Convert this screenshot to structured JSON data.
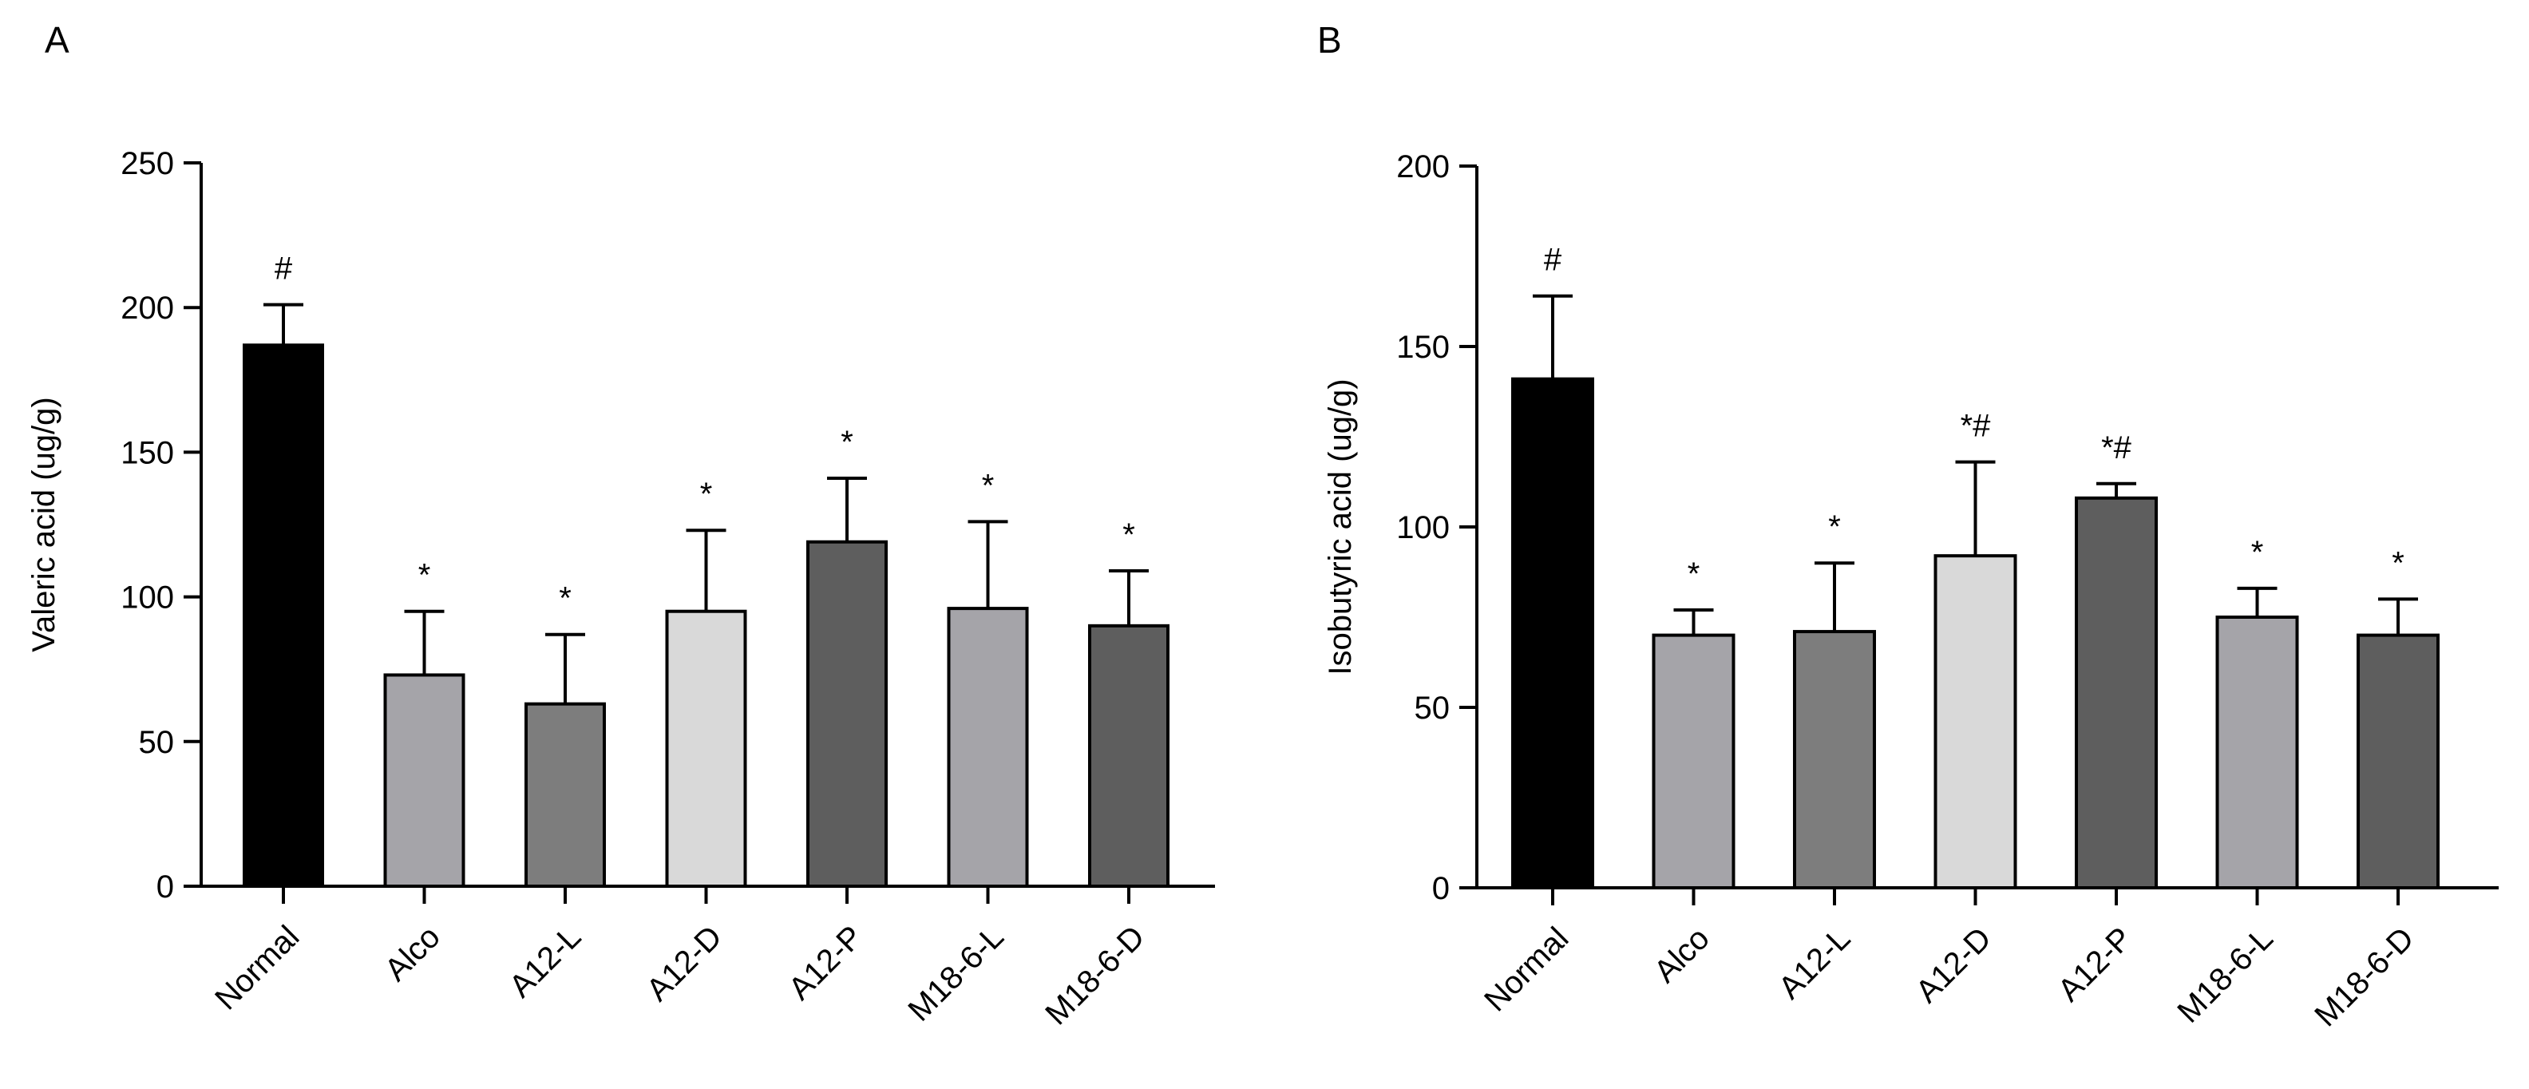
{
  "chart_data": [
    {
      "type": "bar",
      "panel_label": "A",
      "title": "",
      "xlabel": "",
      "ylabel": "Valeric acid  (ug/g)",
      "ylim": [
        0,
        250
      ],
      "yticks": [
        0,
        50,
        100,
        150,
        200,
        250
      ],
      "categories": [
        "Normal",
        "Alco",
        "A12-L",
        "A12-D",
        "A12-P",
        "M18-6-L",
        "M18-6-D"
      ],
      "values": [
        187,
        73,
        63,
        95,
        119,
        96,
        90
      ],
      "error_upper": [
        14,
        22,
        24,
        28,
        22,
        30,
        19
      ],
      "significance": [
        "#",
        "*",
        "*",
        "*",
        "*",
        "*",
        "*"
      ],
      "colors": [
        "#000000",
        "#a5a4a9",
        "#7d7d7d",
        "#d9d9d9",
        "#5e5e5e",
        "#a5a4a9",
        "#5e5e5e"
      ],
      "legend": "none",
      "grid": false
    },
    {
      "type": "bar",
      "panel_label": "B",
      "title": "",
      "xlabel": "",
      "ylabel": "Isobutyric acid  (ug/g)",
      "ylim": [
        0,
        200
      ],
      "yticks": [
        0,
        50,
        100,
        150,
        200
      ],
      "categories": [
        "Normal",
        "Alco",
        "A12-L",
        "A12-D",
        "A12-P",
        "M18-6-L",
        "M18-6-D"
      ],
      "values": [
        141,
        70,
        71,
        92,
        108,
        75,
        70
      ],
      "error_upper": [
        23,
        7,
        19,
        26,
        4,
        8,
        10
      ],
      "significance": [
        "#",
        "*",
        "*",
        "*#",
        "*#",
        "*",
        "*"
      ],
      "colors": [
        "#000000",
        "#a5a4a9",
        "#7d7d7d",
        "#d9d9d9",
        "#5e5e5e",
        "#a5a4a9",
        "#5e5e5e"
      ],
      "legend": "none",
      "grid": false
    }
  ]
}
